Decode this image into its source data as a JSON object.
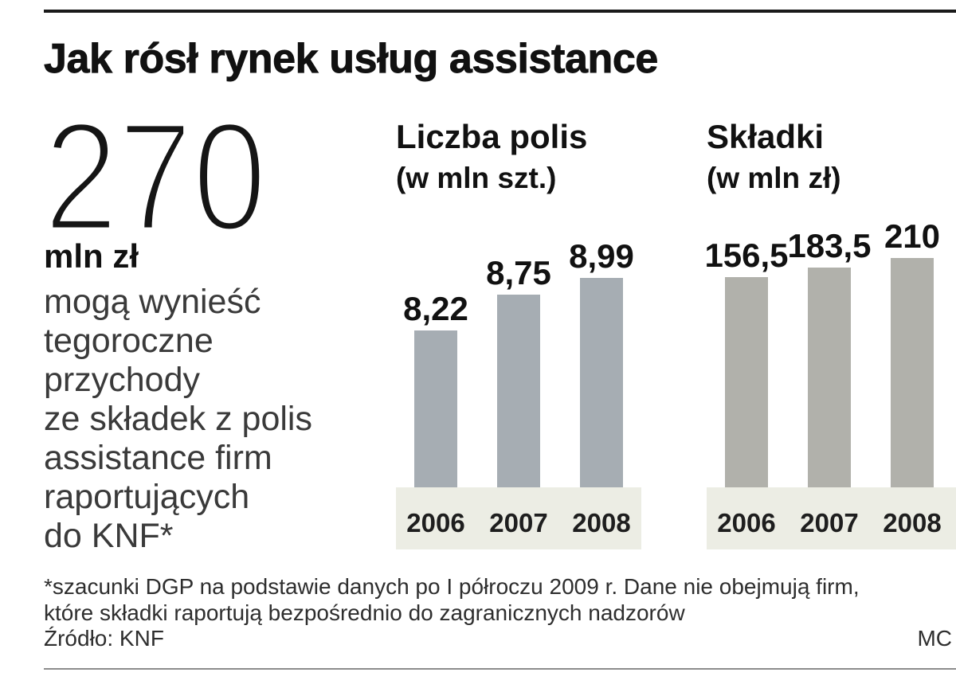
{
  "title": "Jak rósł rynek usług assistance",
  "highlight": {
    "value": "270",
    "unit": "mln zł",
    "description_lines": [
      "mogą wynieść",
      "tegoroczne",
      "przychody",
      "ze składek z polis",
      "assistance firm",
      "raportujących",
      "do KNF*"
    ]
  },
  "chart_data": [
    {
      "type": "bar",
      "title": "Liczba polis",
      "subtitle": "(w mln szt.)",
      "categories": [
        "2006",
        "2007",
        "2008"
      ],
      "values": [
        8.22,
        8.75,
        8.99
      ],
      "value_labels": [
        "8,22",
        "8,75",
        "8,99"
      ],
      "grid": false,
      "bar_color": "#a6adb3",
      "axis_band_color": "#ecede4"
    },
    {
      "type": "bar",
      "title": "Składki",
      "subtitle": "(w mln zł)",
      "categories": [
        "2006",
        "2007",
        "2008"
      ],
      "values": [
        156.5,
        183.5,
        210
      ],
      "value_labels": [
        "156,5",
        "183,5",
        "210"
      ],
      "grid": false,
      "bar_color": "#b1b1ab",
      "axis_band_color": "#ecede4"
    }
  ],
  "footnote": {
    "lines": [
      "*szacunki DGP na podstawie danych po I półroczu 2009 r. Dane nie obejmują firm,",
      "które składki raportują bezpośrednio do zagranicznych nadzorów"
    ],
    "source": "Źródło: KNF",
    "credit": "MC"
  }
}
